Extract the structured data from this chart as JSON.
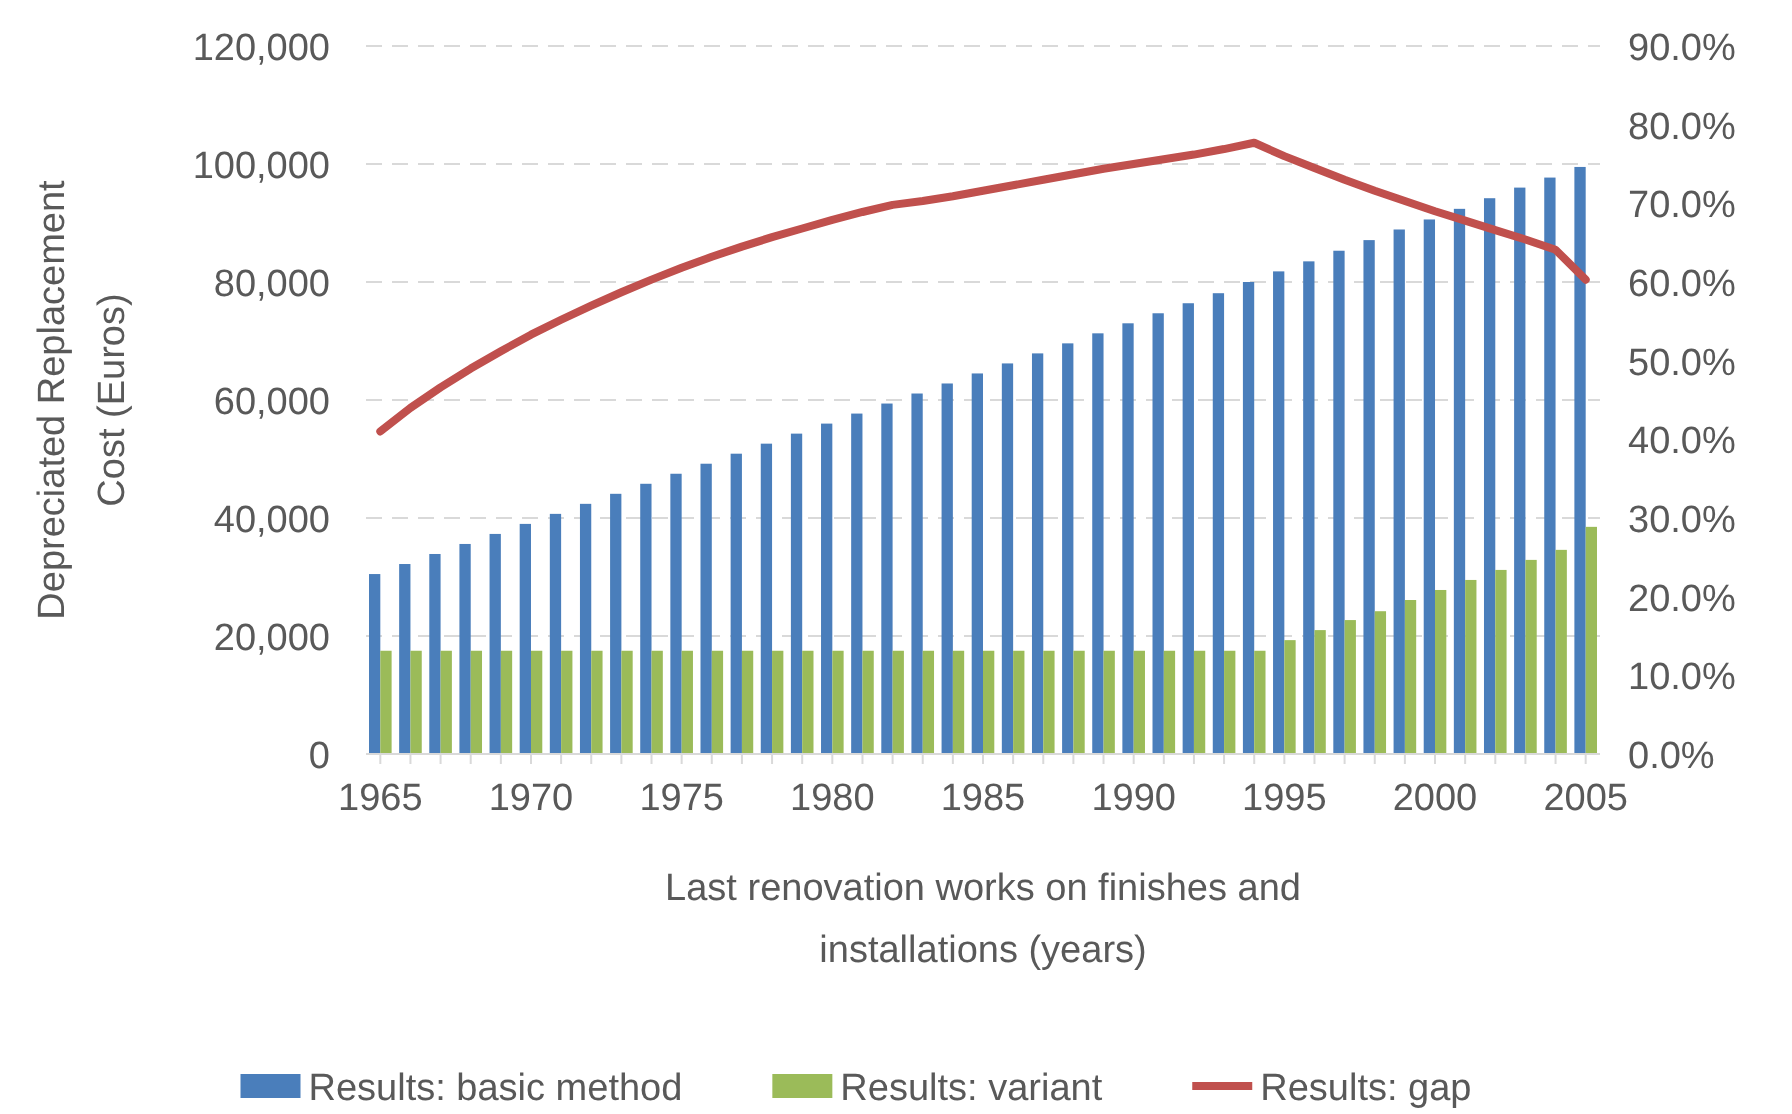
{
  "chart_data": {
    "type": "bar",
    "xlabel": "Last renovation works on finishes and installations (years)",
    "ylabel": "Depreciated Replacement Cost (Euros)",
    "categories": [
      "1965",
      null,
      null,
      null,
      null,
      "1970",
      null,
      null,
      null,
      null,
      "1975",
      null,
      null,
      null,
      null,
      "1980",
      null,
      null,
      null,
      null,
      "1985",
      null,
      null,
      null,
      null,
      "1990",
      null,
      null,
      null,
      null,
      "1995",
      null,
      null,
      null,
      null,
      "2000",
      null,
      null,
      null,
      null,
      "2005"
    ],
    "series": [
      {
        "name": "Results: basic method",
        "color": "#4a7ebb",
        "values": [
          30500,
          32200,
          33900,
          35600,
          37300,
          39000,
          40700,
          42400,
          44100,
          45800,
          47500,
          49200,
          50900,
          52600,
          54300,
          56000,
          57700,
          59400,
          61100,
          62800,
          64500,
          66200,
          67900,
          69600,
          71300,
          73000,
          74700,
          76400,
          78100,
          80000,
          81800,
          83500,
          85300,
          87100,
          88900,
          90600,
          92400,
          94200,
          96000,
          97700,
          99500
        ]
      },
      {
        "name": "Results: variant",
        "color": "#9bbb59",
        "values": [
          17500,
          17500,
          17500,
          17500,
          17500,
          17500,
          17500,
          17500,
          17500,
          17500,
          17500,
          17500,
          17500,
          17500,
          17500,
          17500,
          17500,
          17500,
          17500,
          17500,
          17500,
          17500,
          17500,
          17500,
          17500,
          17500,
          17500,
          17500,
          17500,
          17500,
          19300,
          21000,
          22700,
          24200,
          26100,
          27800,
          29500,
          31200,
          32900,
          34600,
          38500
        ]
      },
      {
        "name": "Results: gap",
        "type": "line",
        "axis": "y2",
        "color": "#c0504d",
        "values": [
          41.0,
          44.0,
          46.6,
          49.0,
          51.2,
          53.3,
          55.2,
          57.0,
          58.7,
          60.3,
          61.8,
          63.2,
          64.5,
          65.7,
          66.8,
          67.9,
          68.9,
          69.8,
          70.3,
          70.9,
          71.6,
          72.3,
          73.0,
          73.7,
          74.4,
          75.0,
          75.6,
          76.2,
          76.9,
          77.7,
          76.0,
          74.5,
          73.0,
          71.6,
          70.3,
          69.0,
          67.8,
          66.6,
          65.4,
          64.1,
          60.3
        ]
      }
    ],
    "ylim": [
      0,
      120000
    ],
    "yticks": [
      0,
      {
        "value": 20000,
        "label": "20,000"
      },
      {
        "value": 40000,
        "label": "40,000"
      },
      {
        "value": 60000,
        "label": "60,000"
      },
      {
        "value": 80000,
        "label": "80,000"
      },
      {
        "value": 100000,
        "label": "100,000"
      },
      {
        "value": 120000,
        "label": "120,000"
      }
    ],
    "y2lim": [
      0,
      90
    ],
    "y2ticks": [
      {
        "value": 0,
        "label": "0.0%"
      },
      {
        "value": 10,
        "label": "10.0%"
      },
      {
        "value": 20,
        "label": "20.0%"
      },
      {
        "value": 30,
        "label": "30.0%"
      },
      {
        "value": 40,
        "label": "40.0%"
      },
      {
        "value": 50,
        "label": "50.0%"
      },
      {
        "value": 60,
        "label": "60.0%"
      },
      {
        "value": 70,
        "label": "70.0%"
      },
      {
        "value": 80,
        "label": "80.0%"
      },
      {
        "value": 90,
        "label": "90.0%"
      }
    ],
    "grid": "y",
    "legend": "bottom"
  }
}
